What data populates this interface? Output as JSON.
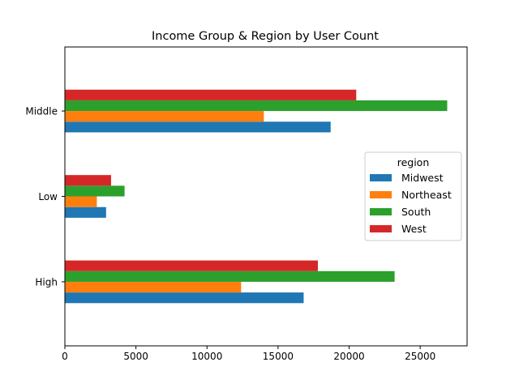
{
  "chart_data": {
    "type": "bar",
    "orientation": "horizontal",
    "title": "Income Group & Region by User Count",
    "xlabel": "",
    "ylabel": "",
    "categories": [
      "High",
      "Low",
      "Middle"
    ],
    "series": [
      {
        "name": "Midwest",
        "color": "#1f77b4",
        "values": [
          16800,
          2900,
          18700
        ]
      },
      {
        "name": "Northeast",
        "color": "#ff7f0e",
        "values": [
          12400,
          2250,
          14000
        ]
      },
      {
        "name": "South",
        "color": "#2ca02c",
        "values": [
          23200,
          4200,
          26900
        ]
      },
      {
        "name": "West",
        "color": "#d62728",
        "values": [
          17800,
          3250,
          20500
        ]
      }
    ],
    "xlim": [
      0,
      28300
    ],
    "xticks": [
      0,
      5000,
      10000,
      15000,
      20000,
      25000
    ],
    "xtick_labels": [
      "0",
      "5000",
      "10000",
      "15000",
      "20000",
      "25000"
    ],
    "grid": false,
    "legend": {
      "title": "region",
      "position": "center-right"
    }
  }
}
